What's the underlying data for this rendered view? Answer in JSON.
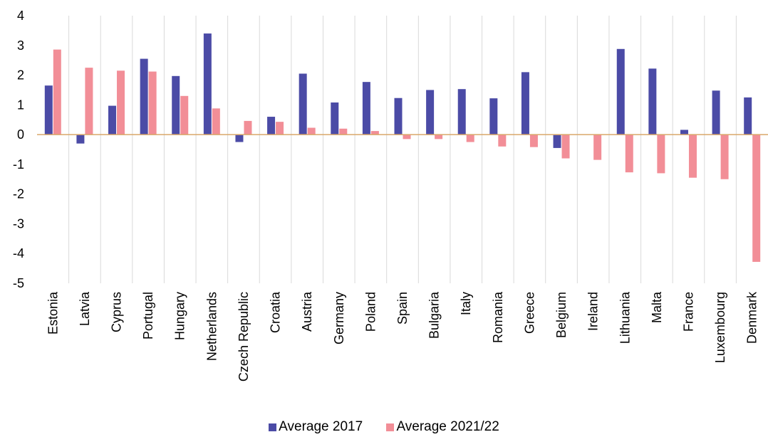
{
  "chart_data": {
    "type": "bar",
    "title": "",
    "xlabel": "",
    "ylabel": "",
    "ylim": [
      -5,
      4
    ],
    "yticks": [
      4,
      3,
      2,
      1,
      0,
      -1,
      -2,
      -3,
      -4,
      -5
    ],
    "grid": "vertical category separators",
    "legend_position": "bottom",
    "categories": [
      "Estonia",
      "Latvia",
      "Cyprus",
      "Portugal",
      "Hungary",
      "Netherlands",
      "Czech Republic",
      "Croatia",
      "Austria",
      "Germany",
      "Poland",
      "Spain",
      "Bulgaria",
      "Italy",
      "Romania",
      "Greece",
      "Belgium",
      "Ireland",
      "Lithuania",
      "Malta",
      "France",
      "Luxembourg",
      "Denmark"
    ],
    "series": [
      {
        "name": "Average 2017",
        "color": "#4B4BA6",
        "values": [
          1.65,
          -0.3,
          0.97,
          2.55,
          1.97,
          3.4,
          -0.25,
          0.6,
          2.05,
          1.08,
          1.77,
          1.23,
          1.5,
          1.53,
          1.22,
          2.1,
          -0.45,
          0.0,
          2.88,
          2.22,
          0.16,
          1.48,
          1.25
        ]
      },
      {
        "name": "Average 2021/22",
        "color": "#F28E97",
        "values": [
          2.86,
          2.25,
          2.15,
          2.12,
          1.3,
          0.88,
          0.46,
          0.43,
          0.23,
          0.2,
          0.12,
          -0.15,
          -0.15,
          -0.25,
          -0.4,
          -0.42,
          -0.8,
          -0.85,
          -1.27,
          -1.3,
          -1.45,
          -1.5,
          -4.28
        ]
      }
    ]
  },
  "style": {
    "axis_color": "#D9A86A",
    "grid_color": "#D9D9D9"
  }
}
